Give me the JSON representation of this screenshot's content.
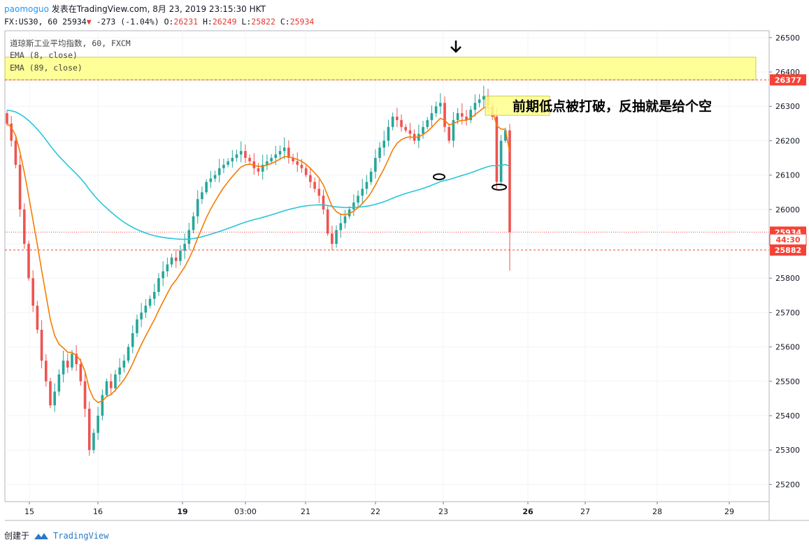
{
  "header": {
    "user": "paomoguo",
    "published": "发表在TradingView.com, 8月 23, 2019 23:15:30 HKT"
  },
  "ohlc": {
    "symbol": "FX:US30, 60",
    "last": "25934",
    "arrow": "▼",
    "change": "-273 (-1.04%)",
    "open_label": "O:",
    "open": "26231",
    "high_label": "H:",
    "high": "26249",
    "low_label": "L:",
    "low": "25822",
    "close_label": "C:",
    "close": "25934"
  },
  "legend": {
    "instrument": "道琼斯工业平均指数, 60, FXCM",
    "ema_fast": "EMA (8, close)",
    "ema_slow": "EMA (89, close)"
  },
  "annotation": {
    "text": "前期低点被打破，反抽就是给个空"
  },
  "footer": {
    "created_with": "创建于",
    "brand": "TradingView"
  },
  "colors": {
    "up": "#26a69a",
    "down": "#ef5350",
    "ema_fast": "#f57c00",
    "ema_slow": "#26c6da",
    "highlight": "#ffff8d",
    "axis_red": "#f44336"
  },
  "chart_data": {
    "type": "candlestick",
    "ylim": [
      25150,
      26520
    ],
    "y_ticks": [
      25200,
      25300,
      25400,
      25500,
      25600,
      25700,
      25800,
      25900,
      26000,
      26100,
      26200,
      26300,
      26400,
      26500
    ],
    "x_ticks": [
      {
        "label": "15",
        "bold": false
      },
      {
        "label": "16",
        "bold": false
      },
      {
        "label": "19",
        "bold": true
      },
      {
        "label": "03:00",
        "bold": false
      },
      {
        "label": "21",
        "bold": false
      },
      {
        "label": "22",
        "bold": false
      },
      {
        "label": "23",
        "bold": false
      },
      {
        "label": "26",
        "bold": true
      },
      {
        "label": "27",
        "bold": false
      },
      {
        "label": "28",
        "bold": false
      },
      {
        "label": "29",
        "bold": false
      }
    ],
    "price_labels": [
      {
        "label": "26377",
        "value": 26377,
        "style": "dashed"
      },
      {
        "label": "25934",
        "value": 25934,
        "style": "dotted"
      },
      {
        "label": "44:30",
        "value": 25912,
        "style": "none"
      },
      {
        "label": "25882",
        "value": 25882,
        "style": "dashed"
      }
    ],
    "zone": [
      26377,
      26443
    ],
    "close_series": [
      26250,
      26200,
      26130,
      26000,
      25900,
      25800,
      25720,
      25650,
      25560,
      25500,
      25430,
      25470,
      25520,
      25560,
      25540,
      25580,
      25550,
      25500,
      25420,
      25300,
      25350,
      25400,
      25460,
      25500,
      25480,
      25520,
      25540,
      25560,
      25600,
      25640,
      25680,
      25700,
      25720,
      25740,
      25760,
      25800,
      25820,
      25840,
      25860,
      25850,
      25880,
      25900,
      25940,
      25980,
      26030,
      26050,
      26080,
      26090,
      26100,
      26120,
      26130,
      26140,
      26150,
      26160,
      26170,
      26150,
      26140,
      26120,
      26110,
      26130,
      26140,
      26150,
      26160,
      26170,
      26180,
      26150,
      26140,
      26130,
      26120,
      26100,
      26080,
      26060,
      26040,
      26000,
      25930,
      25900,
      25940,
      25960,
      25980,
      26000,
      26020,
      26040,
      26060,
      26080,
      26110,
      26150,
      26180,
      26200,
      26240,
      26270,
      26260,
      26240,
      26230,
      26220,
      26200,
      26220,
      26240,
      26260,
      26280,
      26300,
      26310,
      26240,
      26200,
      26260,
      26280,
      26270,
      26260,
      26290,
      26310,
      26320,
      26330,
      26300,
      26270,
      26080,
      26200,
      26230,
      25934
    ]
  }
}
